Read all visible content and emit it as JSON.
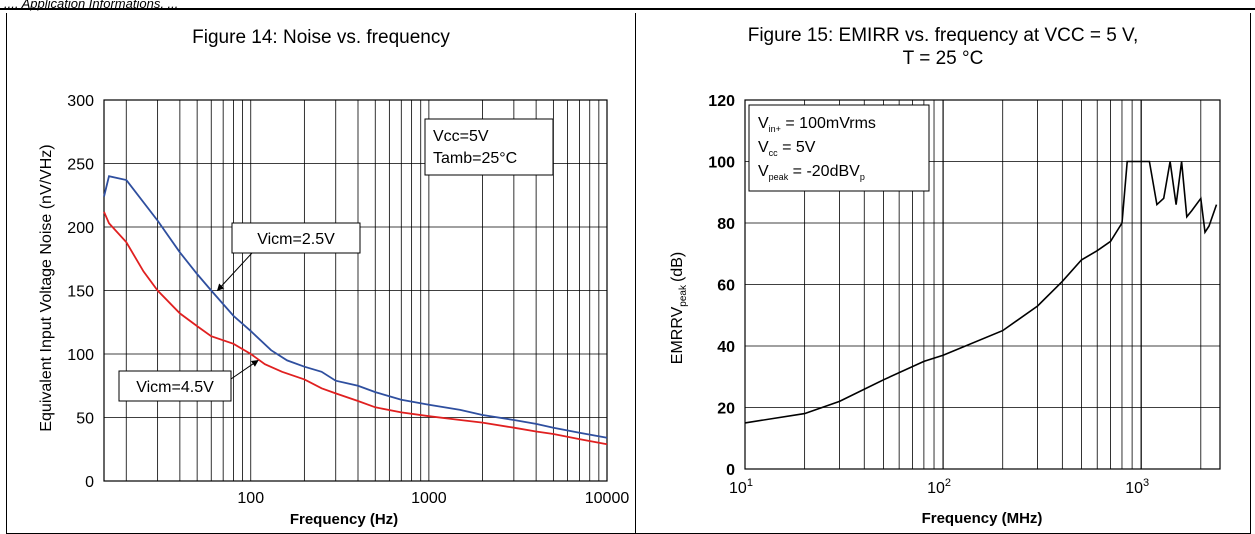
{
  "page": {
    "header_fragment": "..., Application Informations, ..."
  },
  "chart_data": [
    {
      "type": "line",
      "title": "Figure 14: Noise vs. frequency",
      "xlabel": "Frequency (Hz)",
      "ylabel": "Equivalent Input Voltage Noise (nV/VHz)",
      "x_scale": "log",
      "xlim": [
        15,
        10000
      ],
      "ylim": [
        0,
        300
      ],
      "x_ticks": [
        100,
        1000,
        10000
      ],
      "x_tick_labels": [
        "100",
        "1000",
        "10000"
      ],
      "y_ticks": [
        0,
        50,
        100,
        150,
        200,
        250,
        300
      ],
      "y_tick_labels": [
        "0",
        "50",
        "100",
        "150",
        "200",
        "250",
        "300"
      ],
      "grid": true,
      "legend_box": [
        "Vcc=5V",
        "Tamb=25°C"
      ],
      "series": [
        {
          "name": "Vicm=2.5V",
          "color": "#2f4f9f",
          "x": [
            15,
            16,
            20,
            30,
            40,
            50,
            60,
            80,
            100,
            130,
            160,
            200,
            250,
            300,
            400,
            500,
            700,
            1000,
            1500,
            2000,
            3000,
            4000,
            5000,
            7000,
            10000
          ],
          "y": [
            224,
            240,
            237,
            205,
            180,
            163,
            150,
            130,
            118,
            103,
            95,
            90,
            86,
            79,
            75,
            70,
            64,
            60,
            56,
            52,
            48,
            45,
            42,
            38,
            34
          ]
        },
        {
          "name": "Vicm=4.5V",
          "color": "#e02020",
          "x": [
            15,
            16,
            20,
            25,
            30,
            40,
            50,
            60,
            80,
            100,
            120,
            150,
            200,
            250,
            300,
            400,
            500,
            700,
            1000,
            1500,
            2000,
            3000,
            4000,
            5000,
            7000,
            10000
          ],
          "y": [
            212,
            203,
            188,
            165,
            150,
            132,
            122,
            114,
            108,
            100,
            92,
            86,
            80,
            73,
            69,
            63,
            58,
            54,
            51,
            48,
            46,
            42,
            39,
            37,
            33,
            29
          ]
        }
      ],
      "annotations": [
        {
          "text": "Vicm=2.5V",
          "points_to_x": 65,
          "points_to_y": 150
        },
        {
          "text": "Vicm=4.5V",
          "points_to_x": 110,
          "points_to_y": 95
        }
      ]
    },
    {
      "type": "line",
      "title": "Figure 15: EMIRR vs. frequency at VCC = 5 V,",
      "title_line2": "T = 25 °C",
      "xlabel": "Frequency (MHz)",
      "ylabel_main": "EMRRV",
      "ylabel_sub": "peak",
      "ylabel_unit": "(dB)",
      "x_scale": "log",
      "xlim": [
        10,
        2500
      ],
      "ylim": [
        0,
        120
      ],
      "x_ticks": [
        10,
        100,
        1000
      ],
      "x_tick_base": "10",
      "x_tick_exponents": [
        "1",
        "2",
        "3"
      ],
      "y_ticks": [
        0,
        20,
        40,
        60,
        80,
        100,
        120
      ],
      "y_tick_labels": [
        "0",
        "20",
        "40",
        "60",
        "80",
        "100",
        "120"
      ],
      "grid": true,
      "legend_box": [
        {
          "main": "V",
          "sub": "in+",
          "rest": " = 100mVrms",
          "tail_sub": ""
        },
        {
          "main": "V",
          "sub": "cc",
          "rest": " = 5V",
          "tail_sub": ""
        },
        {
          "main": "V",
          "sub": "peak",
          "rest": " = -20dBV",
          "tail_sub": "p"
        }
      ],
      "series": [
        {
          "color": "#000000",
          "x": [
            10,
            20,
            30,
            50,
            80,
            100,
            200,
            300,
            400,
            500,
            600,
            700,
            800,
            850,
            1000,
            1100,
            1200,
            1300,
            1400,
            1500,
            1600,
            1700,
            1800,
            2000,
            2100,
            2200,
            2400
          ],
          "y": [
            15,
            18,
            22,
            29,
            35,
            37,
            45,
            53,
            61,
            68,
            71,
            74,
            80,
            100,
            100,
            100,
            86,
            88,
            100,
            86,
            100,
            82,
            84,
            88,
            77,
            79,
            86
          ]
        }
      ]
    }
  ]
}
